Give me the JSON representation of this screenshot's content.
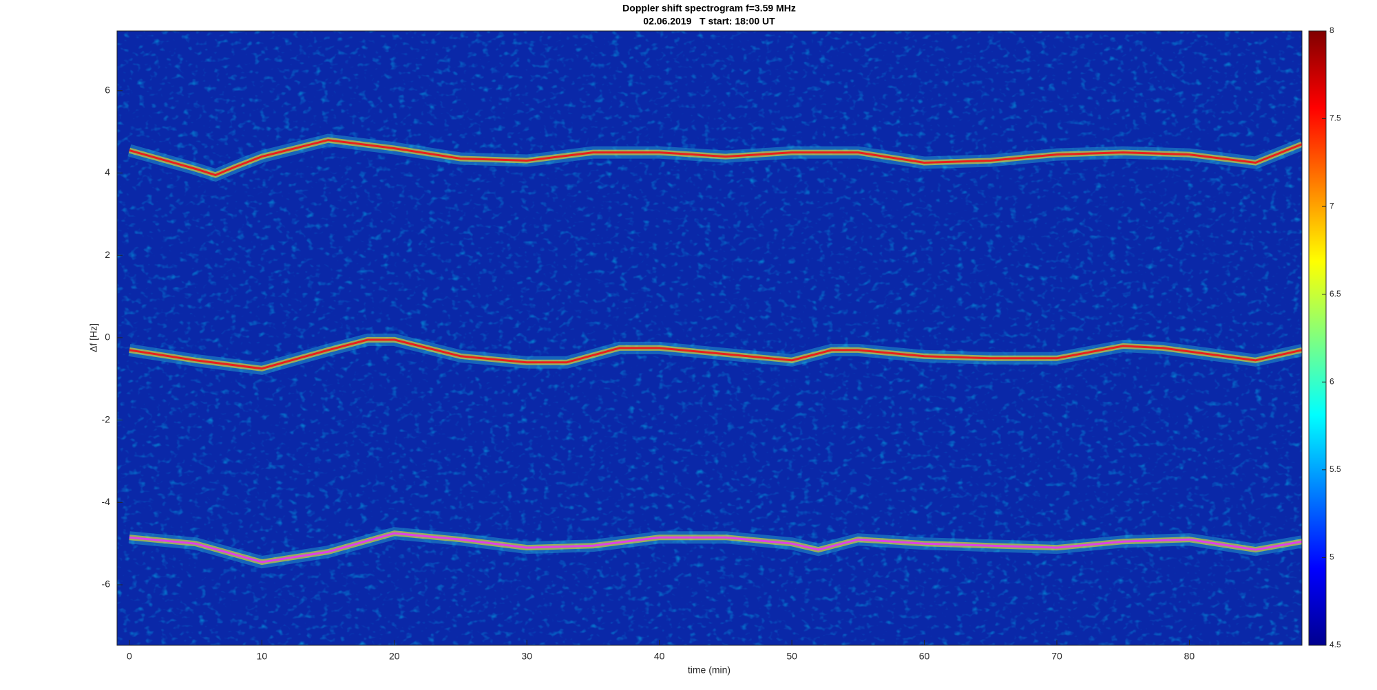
{
  "chart_data": {
    "type": "spectrogram",
    "title": "Doppler shift spectrogram f=3.59 MHz",
    "subtitle": "02.06.2019   T start: 18:00 UT",
    "xlabel": "time (min)",
    "ylabel": "Δf [Hz]",
    "xlim": [
      -0.93,
      88.5
    ],
    "ylim": [
      -7.47,
      7.45
    ],
    "xticks": [
      0,
      10,
      20,
      30,
      40,
      50,
      60,
      70,
      80
    ],
    "yticks": [
      -6,
      -4,
      -2,
      0,
      2,
      4,
      6
    ],
    "colorbar": {
      "lim": [
        4.5,
        8
      ],
      "ticks": [
        4.5,
        5,
        5.5,
        6,
        6.5,
        7,
        7.5,
        8
      ]
    },
    "series": [
      {
        "color": "#e8201c",
        "x": [
          0,
          5,
          6.5,
          8,
          10,
          15,
          20,
          25,
          30,
          35,
          40,
          45,
          50,
          55,
          60,
          65,
          70,
          75,
          80,
          85,
          88.5
        ],
        "values": [
          4.55,
          4.1,
          3.95,
          4.15,
          4.4,
          4.8,
          4.6,
          4.35,
          4.3,
          4.5,
          4.5,
          4.4,
          4.5,
          4.5,
          4.25,
          4.3,
          4.45,
          4.5,
          4.45,
          4.25,
          4.7
        ]
      },
      {
        "color": "#e8201c",
        "x": [
          0,
          5,
          10,
          15,
          18,
          20,
          25,
          30,
          33,
          37,
          40,
          45,
          50,
          53,
          55,
          60,
          65,
          70,
          75,
          78,
          85,
          88.5
        ],
        "values": [
          -0.3,
          -0.55,
          -0.75,
          -0.3,
          -0.05,
          -0.05,
          -0.45,
          -0.6,
          -0.6,
          -0.25,
          -0.25,
          -0.4,
          -0.55,
          -0.3,
          -0.3,
          -0.45,
          -0.5,
          -0.5,
          -0.2,
          -0.25,
          -0.55,
          -0.3
        ]
      },
      {
        "color": "#e040e8",
        "x": [
          0,
          5,
          10,
          15,
          20,
          25,
          30,
          35,
          40,
          45,
          50,
          52,
          55,
          60,
          65,
          70,
          75,
          80,
          85,
          88.5
        ],
        "values": [
          -4.85,
          -5.0,
          -5.45,
          -5.2,
          -4.75,
          -4.9,
          -5.1,
          -5.05,
          -4.85,
          -4.85,
          -5.0,
          -5.15,
          -4.9,
          -5.0,
          -5.05,
          -5.1,
          -4.95,
          -4.9,
          -5.15,
          -4.95
        ]
      }
    ]
  }
}
